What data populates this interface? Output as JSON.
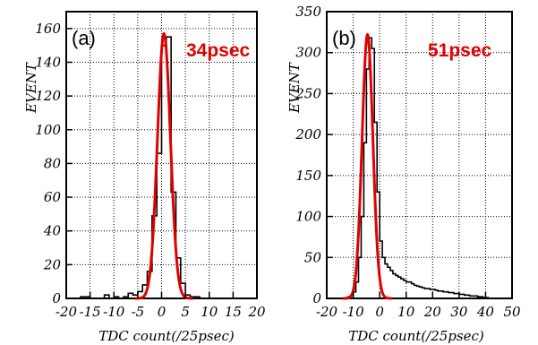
{
  "chart_data": [
    {
      "type": "histogram",
      "panel_label": "(a)",
      "annotation": "34psec",
      "xlabel": "TDC count(/25psec)",
      "ylabel": "EVENT",
      "xlim": [
        -20,
        20
      ],
      "ylim": [
        0,
        170
      ],
      "xticks": [
        -20,
        -15,
        -10,
        -5,
        0,
        5,
        10,
        15,
        20
      ],
      "yticks": [
        0,
        20,
        40,
        60,
        80,
        100,
        120,
        140,
        160
      ],
      "grid": true,
      "bin_width": 1,
      "bins_x": [
        -20,
        -19,
        -18,
        -17,
        -16,
        -15,
        -14,
        -13,
        -12,
        -11,
        -10,
        -9,
        -8,
        -7,
        -6,
        -5,
        -4,
        -3,
        -2,
        -1,
        0,
        1,
        2,
        3,
        4,
        5,
        6,
        7,
        8,
        9,
        10,
        11,
        12,
        13,
        14,
        15,
        16,
        17,
        18,
        19
      ],
      "counts": [
        0,
        0,
        0,
        1,
        1,
        0,
        0,
        0,
        2,
        0,
        1,
        0,
        1,
        3,
        2,
        4,
        8,
        16,
        49,
        86,
        150,
        155,
        63,
        24,
        9,
        2,
        1,
        1,
        0,
        0,
        0,
        0,
        0,
        0,
        0,
        0,
        0,
        0,
        0,
        0
      ],
      "fit": {
        "amplitude": 157,
        "mean": 0.5,
        "sigma": 1.36,
        "color": "#e00000"
      }
    },
    {
      "type": "histogram",
      "panel_label": "(b)",
      "annotation": "51psec",
      "xlabel": "TDC count(/25psec)",
      "ylabel": "EVENT",
      "xlim": [
        -20,
        50
      ],
      "ylim": [
        0,
        350
      ],
      "xticks": [
        -20,
        -10,
        0,
        10,
        20,
        30,
        40,
        50
      ],
      "yticks": [
        0,
        50,
        100,
        150,
        200,
        250,
        300,
        350
      ],
      "grid": true,
      "bin_width": 1,
      "bins_x": [
        -13,
        -12,
        -11,
        -10,
        -9,
        -8,
        -7,
        -6,
        -5,
        -4,
        -3,
        -2,
        -1,
        0,
        1,
        2,
        3,
        4,
        5,
        6,
        7,
        8,
        9,
        10,
        11,
        12,
        13,
        14,
        15,
        16,
        17,
        18,
        19,
        20,
        21,
        22,
        23,
        24,
        25,
        26,
        27,
        28,
        29,
        30,
        31,
        32,
        33,
        34,
        35,
        36,
        37,
        38,
        39,
        40
      ],
      "counts": [
        0,
        2,
        4,
        8,
        20,
        50,
        100,
        190,
        280,
        318,
        305,
        215,
        130,
        70,
        50,
        42,
        38,
        34,
        30,
        28,
        26,
        24,
        22,
        20,
        20,
        18,
        16,
        15,
        14,
        13,
        12,
        12,
        11,
        11,
        10,
        9,
        9,
        8,
        8,
        7,
        7,
        6,
        6,
        5,
        5,
        4,
        4,
        3,
        3,
        3,
        2,
        2,
        1,
        1
      ],
      "fit": {
        "amplitude": 322,
        "mean": -4.6,
        "sigma": 2.04,
        "color": "#e00000"
      }
    }
  ]
}
